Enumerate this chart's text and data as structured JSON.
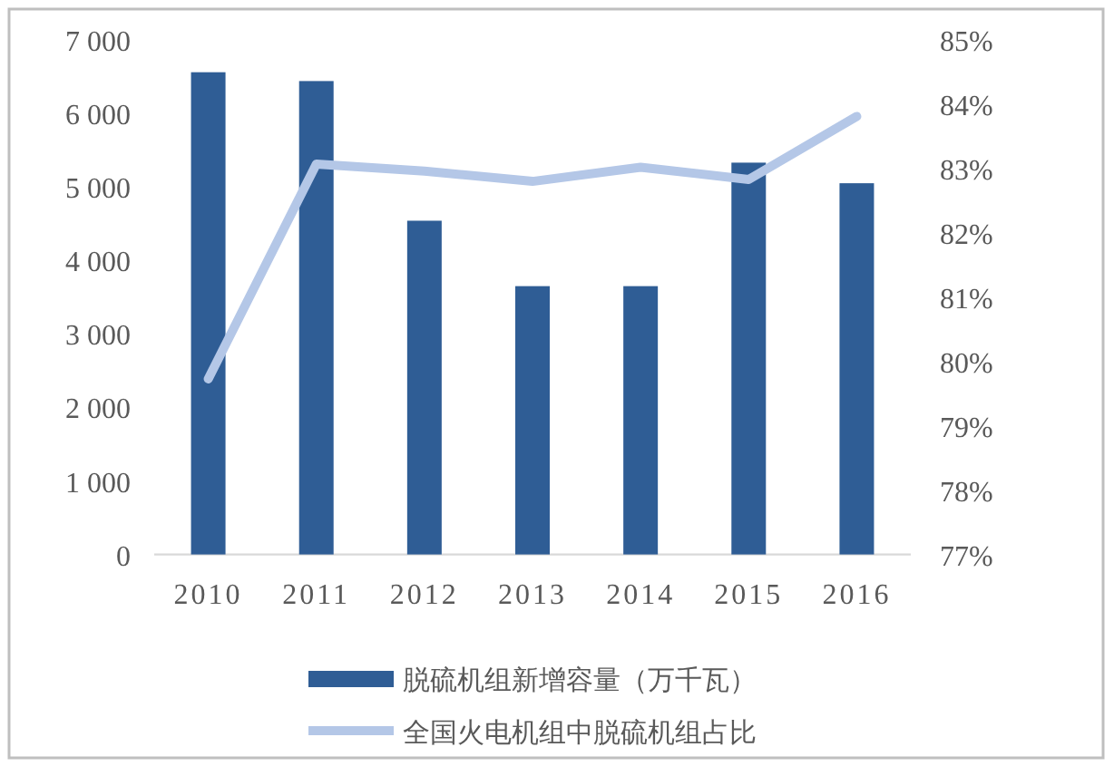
{
  "chart_data": {
    "type": "bar",
    "categories": [
      "2010",
      "2011",
      "2012",
      "2013",
      "2014",
      "2015",
      "2016"
    ],
    "series": [
      {
        "name": "脱硫机组新增容量（万千瓦）",
        "color": "#2f5d95",
        "values": [
          6560,
          6440,
          4540,
          3650,
          3650,
          5330,
          5050
        ]
      },
      {
        "name": "全国火电机组中脱硫机组占比",
        "type": "line",
        "axis": "y2",
        "color": "#b4c7e7",
        "values": [
          79.73,
          83.07,
          82.96,
          82.8,
          83.02,
          82.83,
          83.81
        ]
      }
    ],
    "ylim": [
      0,
      7000
    ],
    "yticks": [
      0,
      {
        "value": 1000,
        "label": "1 000"
      },
      {
        "value": 2000,
        "label": "2 000"
      },
      {
        "value": 3000,
        "label": "3 000"
      },
      {
        "value": 4000,
        "label": "4 000"
      },
      {
        "value": 5000,
        "label": "5 000"
      },
      {
        "value": 6000,
        "label": "6 000"
      },
      {
        "value": 7000,
        "label": "7 000"
      }
    ],
    "y2lim": [
      77,
      85
    ],
    "y2ticks": [
      {
        "value": 77,
        "label": "77%"
      },
      {
        "value": 78,
        "label": "78%"
      },
      {
        "value": 79,
        "label": "79%"
      },
      {
        "value": 80,
        "label": "80%"
      },
      {
        "value": 81,
        "label": "81%"
      },
      {
        "value": 82,
        "label": "82%"
      },
      {
        "value": 83,
        "label": "83%"
      },
      {
        "value": 84,
        "label": "84%"
      },
      {
        "value": 85,
        "label": "85%"
      }
    ],
    "legend": "bottom"
  }
}
